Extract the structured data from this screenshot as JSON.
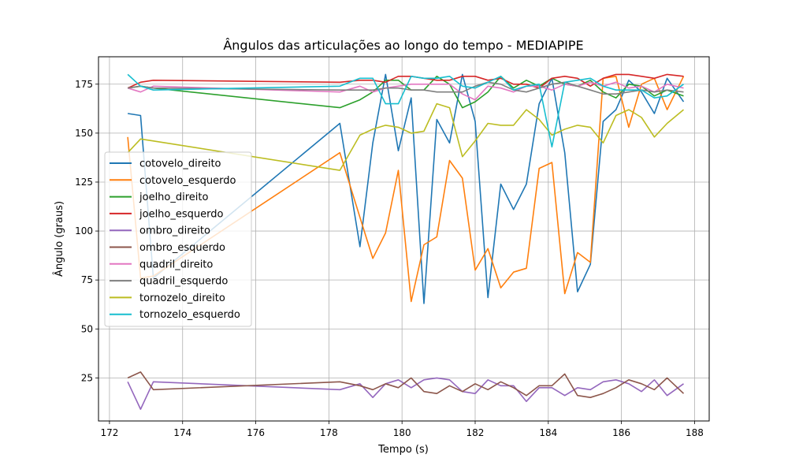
{
  "chart_data": {
    "type": "line",
    "title": "Ângulos das articulações ao longo do tempo - MEDIAPIPE",
    "xlabel": "Tempo (s)",
    "ylabel": "Ângulo (graus)",
    "xlim": [
      171.7,
      188.4
    ],
    "ylim": [
      3,
      189
    ],
    "x_ticks": [
      172,
      174,
      176,
      178,
      180,
      182,
      184,
      186,
      188
    ],
    "y_ticks": [
      25,
      50,
      75,
      100,
      125,
      150,
      175
    ],
    "grid": true,
    "legend_position": "center-left",
    "x": [
      172.5,
      172.85,
      173.2,
      178.3,
      178.85,
      179.2,
      179.55,
      179.9,
      180.25,
      180.6,
      180.95,
      181.3,
      181.65,
      182.0,
      182.35,
      182.7,
      183.05,
      183.4,
      183.75,
      184.1,
      184.45,
      184.8,
      185.15,
      185.5,
      185.85,
      186.2,
      186.55,
      186.9,
      187.25,
      187.7
    ],
    "series": [
      {
        "name": "cotovelo_direito",
        "color": "#1f77b4",
        "values": [
          160,
          159,
          76,
          155,
          92,
          145,
          180,
          141,
          168,
          63,
          157,
          145,
          180,
          156,
          66,
          124,
          111,
          124,
          165,
          178,
          140,
          69,
          83,
          156,
          162,
          177,
          171,
          160,
          178,
          166
        ]
      },
      {
        "name": "cotovelo_esquerdo",
        "color": "#ff7f0e",
        "values": [
          148,
          76,
          77,
          140,
          107,
          86,
          99,
          131,
          64,
          93,
          97,
          136,
          127,
          80,
          91,
          71,
          79,
          81,
          132,
          135,
          68,
          89,
          84,
          178,
          179,
          153,
          175,
          178,
          162,
          179
        ]
      },
      {
        "name": "joelho_direito",
        "color": "#2ca02c",
        "values": [
          173,
          174,
          173,
          163,
          167,
          171,
          177,
          177,
          172,
          172,
          179,
          175,
          163,
          166,
          171,
          179,
          173,
          177,
          174,
          178,
          175,
          174,
          177,
          171,
          168,
          175,
          174,
          169,
          172,
          169
        ]
      },
      {
        "name": "joelho_esquerdo",
        "color": "#d62728",
        "values": [
          173,
          176,
          177,
          176,
          177,
          177,
          176,
          179,
          179,
          178,
          177,
          177,
          179,
          179,
          177,
          178,
          175,
          175,
          173,
          178,
          179,
          178,
          174,
          178,
          180,
          180,
          179,
          178,
          180,
          179
        ]
      },
      {
        "name": "ombro_direito",
        "color": "#9467bd",
        "values": [
          23,
          9,
          23,
          19,
          22,
          15,
          22,
          24,
          20,
          24,
          25,
          24,
          18,
          17,
          24,
          21,
          21,
          13,
          20,
          20,
          16,
          20,
          19,
          23,
          24,
          22,
          18,
          24,
          16,
          22
        ]
      },
      {
        "name": "ombro_esquerdo",
        "color": "#8c564b",
        "values": [
          25,
          28,
          19,
          23,
          21,
          19,
          22,
          20,
          25,
          18,
          17,
          21,
          18,
          22,
          19,
          23,
          20,
          16,
          21,
          21,
          27,
          16,
          15,
          17,
          20,
          24,
          22,
          19,
          25,
          17
        ]
      },
      {
        "name": "quadril_direito",
        "color": "#e377c2",
        "values": [
          173,
          171,
          174,
          171,
          174,
          171,
          173,
          174,
          175,
          175,
          175,
          175,
          170,
          167,
          174,
          173,
          171,
          174,
          174,
          172,
          175,
          174,
          176,
          174,
          176,
          173,
          174,
          171,
          175,
          173
        ]
      },
      {
        "name": "quadril_esquerdo",
        "color": "#7f7f7f",
        "values": [
          173,
          174,
          173,
          172,
          172,
          172,
          173,
          173,
          172,
          172,
          171,
          171,
          171,
          174,
          176,
          175,
          172,
          171,
          173,
          175,
          176,
          174,
          172,
          170,
          170,
          171,
          172,
          171,
          172,
          171
        ]
      },
      {
        "name": "tornozelo_direito",
        "color": "#bcbd22",
        "values": [
          140,
          147,
          146,
          131,
          149,
          152,
          154,
          153,
          150,
          151,
          165,
          163,
          138,
          146,
          155,
          154,
          154,
          162,
          157,
          149,
          152,
          154,
          153,
          145,
          159,
          162,
          158,
          148,
          155,
          162
        ]
      },
      {
        "name": "tornozelo_esquerdo",
        "color": "#17becf",
        "values": [
          180,
          174,
          172,
          174,
          178,
          178,
          165,
          165,
          179,
          178,
          178,
          179,
          174,
          173,
          176,
          179,
          172,
          174,
          175,
          143,
          176,
          177,
          178,
          174,
          172,
          172,
          172,
          168,
          169,
          175
        ]
      }
    ]
  }
}
